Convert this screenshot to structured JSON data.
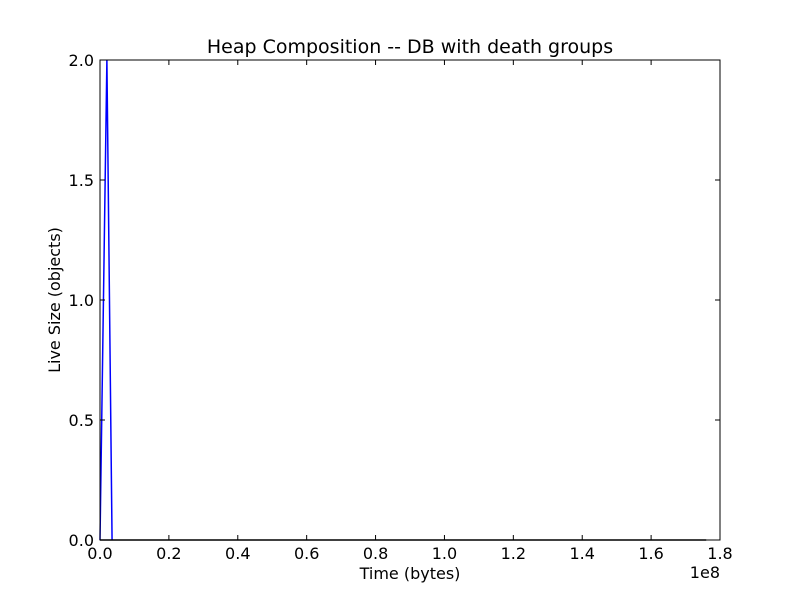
{
  "chart_data": {
    "type": "line",
    "title": "Heap Composition -- DB with death groups",
    "xlabel": "Time (bytes)",
    "ylabel": "Live Size (objects)",
    "x_offset_label": "1e8",
    "xlim": [
      0,
      1.8
    ],
    "ylim": [
      0,
      2.0
    ],
    "xticks": [
      0.0,
      0.2,
      0.4,
      0.6,
      0.8,
      1.0,
      1.2,
      1.4,
      1.6,
      1.8
    ],
    "xtick_labels": [
      "0.0",
      "0.2",
      "0.4",
      "0.6",
      "0.8",
      "1.0",
      "1.2",
      "1.4",
      "1.6",
      "1.8"
    ],
    "yticks": [
      0.0,
      0.5,
      1.0,
      1.5,
      2.0
    ],
    "ytick_labels": [
      "0.0",
      "0.5",
      "1.0",
      "1.5",
      "2.0"
    ],
    "grid": false,
    "series": [
      {
        "color": "#0000ff",
        "x": [
          0.0,
          0.02,
          0.035
        ],
        "y": [
          0.0,
          2.0,
          0.0
        ]
      },
      {
        "color": "#000000",
        "x": [
          0.0,
          1.76
        ],
        "y": [
          0.0,
          0.0
        ]
      }
    ]
  }
}
